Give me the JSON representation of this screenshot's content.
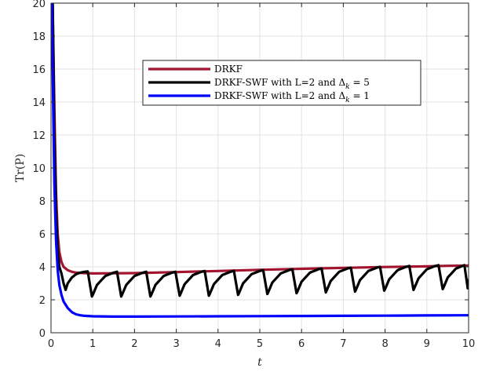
{
  "chart_data": {
    "type": "line",
    "title": "",
    "xlabel": "t",
    "ylabel": "Tr(P)",
    "xlim": [
      0,
      10
    ],
    "ylim": [
      0,
      20
    ],
    "xticks": [
      0,
      1,
      2,
      3,
      4,
      5,
      6,
      7,
      8,
      9,
      10
    ],
    "yticks": [
      0,
      2,
      4,
      6,
      8,
      10,
      12,
      14,
      16,
      18,
      20
    ],
    "grid": true,
    "legend_position": "upper-center",
    "series": [
      {
        "name": "DRKF",
        "color": "#A2142F",
        "x": [
          0.04,
          0.08,
          0.12,
          0.16,
          0.2,
          0.25,
          0.3,
          0.4,
          0.5,
          0.6,
          0.8,
          1.0,
          2.0,
          3.0,
          4.0,
          5.0,
          6.0,
          7.0,
          8.0,
          9.0,
          9.5,
          10.0
        ],
        "y": [
          20.0,
          13.5,
          8.5,
          6.0,
          4.9,
          4.3,
          4.0,
          3.8,
          3.7,
          3.65,
          3.62,
          3.6,
          3.62,
          3.68,
          3.75,
          3.82,
          3.88,
          3.94,
          3.99,
          4.03,
          4.06,
          4.08
        ]
      },
      {
        "name": "DRKF-SWF with L=2 and Δ_k = 5",
        "color": "#000000",
        "x": [
          0.04,
          0.08,
          0.12,
          0.16,
          0.2,
          0.25,
          0.3,
          0.35,
          0.4,
          0.5,
          0.6,
          0.7,
          0.8,
          0.88,
          0.98,
          1.0,
          1.1,
          1.3,
          1.5,
          1.58,
          1.68,
          1.7,
          1.8,
          2.0,
          2.2,
          2.28,
          2.38,
          2.4,
          2.5,
          2.7,
          2.9,
          2.98,
          3.08,
          3.1,
          3.2,
          3.4,
          3.6,
          3.68,
          3.78,
          3.8,
          3.9,
          4.1,
          4.3,
          4.38,
          4.48,
          4.5,
          4.6,
          4.8,
          5.0,
          5.08,
          5.18,
          5.2,
          5.3,
          5.5,
          5.7,
          5.78,
          5.88,
          5.9,
          6.0,
          6.2,
          6.4,
          6.48,
          6.58,
          6.6,
          6.7,
          6.9,
          7.1,
          7.18,
          7.28,
          7.3,
          7.4,
          7.6,
          7.8,
          7.88,
          7.98,
          8.0,
          8.1,
          8.3,
          8.5,
          8.58,
          8.68,
          8.7,
          8.8,
          9.0,
          9.2,
          9.28,
          9.38,
          9.4,
          9.5,
          9.7,
          9.9,
          9.98,
          10.0
        ],
        "y": [
          20.0,
          12.0,
          7.5,
          5.0,
          4.0,
          3.6,
          3.0,
          2.6,
          3.0,
          3.35,
          3.55,
          3.65,
          3.7,
          3.72,
          2.2,
          2.3,
          2.9,
          3.45,
          3.65,
          3.7,
          2.2,
          2.3,
          2.9,
          3.45,
          3.65,
          3.7,
          2.2,
          2.3,
          2.9,
          3.45,
          3.65,
          3.7,
          2.25,
          2.35,
          2.95,
          3.5,
          3.7,
          3.75,
          2.25,
          2.35,
          2.95,
          3.5,
          3.7,
          3.76,
          2.3,
          2.4,
          3.0,
          3.55,
          3.75,
          3.8,
          2.35,
          2.45,
          3.05,
          3.6,
          3.8,
          3.85,
          2.4,
          2.5,
          3.1,
          3.65,
          3.85,
          3.9,
          2.45,
          2.55,
          3.15,
          3.7,
          3.9,
          3.95,
          2.5,
          2.6,
          3.2,
          3.75,
          3.95,
          4.0,
          2.55,
          2.65,
          3.25,
          3.8,
          4.0,
          4.05,
          2.6,
          2.7,
          3.3,
          3.85,
          4.05,
          4.1,
          2.65,
          2.75,
          3.35,
          3.9,
          4.1,
          2.7,
          3.2
        ]
      },
      {
        "name": "DRKF-SWF with L=2 and Δ_k = 1",
        "color": "#0000FF",
        "x": [
          0.02,
          0.05,
          0.08,
          0.12,
          0.16,
          0.2,
          0.25,
          0.3,
          0.4,
          0.5,
          0.6,
          0.7,
          0.8,
          1.0,
          1.5,
          2.0,
          3.0,
          4.0,
          5.0,
          6.0,
          7.0,
          8.0,
          9.0,
          10.0
        ],
        "y": [
          20.0,
          14.0,
          9.0,
          5.6,
          3.8,
          2.9,
          2.3,
          1.9,
          1.5,
          1.25,
          1.12,
          1.06,
          1.03,
          1.0,
          0.98,
          0.98,
          0.99,
          1.0,
          1.01,
          1.02,
          1.03,
          1.04,
          1.05,
          1.06
        ]
      }
    ]
  }
}
